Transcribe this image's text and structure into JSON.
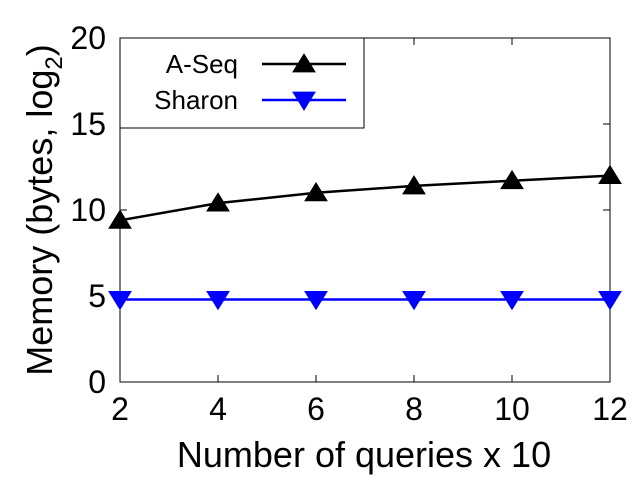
{
  "chart_data": {
    "type": "line",
    "x": [
      2,
      4,
      6,
      8,
      10,
      12
    ],
    "series": [
      {
        "name": "A-Seq",
        "values": [
          9.4,
          10.4,
          11.0,
          11.4,
          11.7,
          12.0
        ],
        "color": "#000000",
        "marker": "triangle-up"
      },
      {
        "name": "Sharon",
        "values": [
          4.8,
          4.8,
          4.8,
          4.8,
          4.8,
          4.8
        ],
        "color": "#0000ff",
        "marker": "triangle-down"
      }
    ],
    "xlabel": "Number of queries x 10",
    "ylabel_main": "Memory (bytes, log",
    "ylabel_sub": "2",
    "ylabel_end": ")",
    "xlim": [
      2,
      12
    ],
    "ylim": [
      0,
      20
    ],
    "xticks": [
      "2",
      "4",
      "6",
      "8",
      "10",
      "12"
    ],
    "yticks": [
      "0",
      "5",
      "10",
      "15",
      "20"
    ],
    "grid": false,
    "legend_position": "top-left"
  }
}
